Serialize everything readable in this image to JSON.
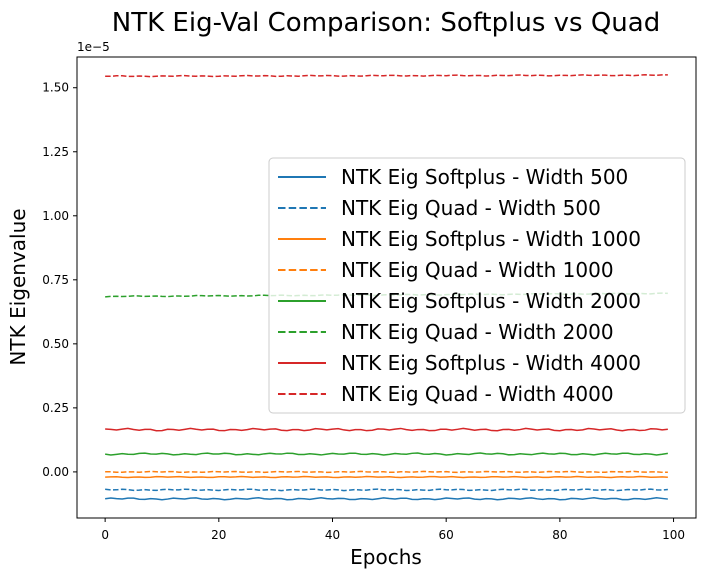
{
  "chart_data": {
    "type": "line",
    "title": "NTK Eig-Val Comparison: Softplus vs Quad",
    "xlabel": "Epochs",
    "ylabel": "NTK Eigenvalue",
    "y_scale_label": "1e−5",
    "xlim": [
      -4.95,
      103.95
    ],
    "ylim": [
      -0.18,
      1.62
    ],
    "xticks": [
      0,
      20,
      40,
      60,
      80,
      100
    ],
    "xtick_labels": [
      "0",
      "20",
      "40",
      "60",
      "80",
      "100"
    ],
    "yticks": [
      0.0,
      0.25,
      0.5,
      0.75,
      1.0,
      1.25,
      1.5
    ],
    "ytick_labels": [
      "0.00",
      "0.25",
      "0.50",
      "0.75",
      "1.00",
      "1.25",
      "1.50"
    ],
    "legend_location": "center-right",
    "x_range": [
      0,
      99
    ],
    "series": [
      {
        "name": "NTK Eig Softplus - Width 500",
        "color": "#1f77b4",
        "style": "solid",
        "base": -0.105,
        "noise": 0.004
      },
      {
        "name": "NTK Eig Quad - Width 500",
        "color": "#1f77b4",
        "style": "dashed",
        "base": -0.07,
        "noise": 0.003
      },
      {
        "name": "NTK Eig Softplus - Width 1000",
        "color": "#ff7f0e",
        "style": "solid",
        "base": -0.02,
        "noise": 0.002
      },
      {
        "name": "NTK Eig Quad - Width 1000",
        "color": "#ff7f0e",
        "style": "dashed",
        "base": 0.0,
        "noise": 0.002
      },
      {
        "name": "NTK Eig Softplus - Width 2000",
        "color": "#2ca02c",
        "style": "solid",
        "base": 0.07,
        "noise": 0.004
      },
      {
        "name": "NTK Eig Quad - Width 2000",
        "color": "#2ca02c",
        "style": "dashed",
        "base": 0.685,
        "noise": 0.002,
        "trend": 0.012
      },
      {
        "name": "NTK Eig Softplus - Width 4000",
        "color": "#d62728",
        "style": "solid",
        "base": 0.165,
        "noise": 0.005
      },
      {
        "name": "NTK Eig Quad - Width 4000",
        "color": "#d62728",
        "style": "dashed",
        "base": 1.545,
        "noise": 0.002,
        "trend": 0.004
      }
    ]
  }
}
